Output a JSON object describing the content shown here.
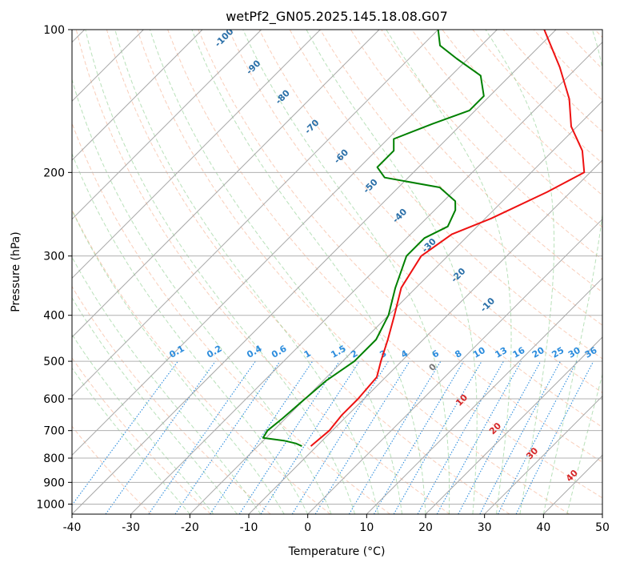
{
  "chart_data": {
    "type": "line",
    "subtype": "skew-t log-p diagram",
    "title": "wetPf2_GN05.2025.145.18.08.G07",
    "xlabel": "Temperature (°C)",
    "ylabel": "Pressure (hPa)",
    "xlim": [
      -40,
      50
    ],
    "ylim": [
      1050,
      100
    ],
    "y_scale": "log",
    "grid": true,
    "x_ticks": [
      -40,
      -30,
      -20,
      -10,
      0,
      10,
      20,
      30,
      40,
      50
    ],
    "y_ticks": [
      100,
      200,
      300,
      400,
      500,
      600,
      700,
      800,
      900,
      1000
    ],
    "dry_adiabat_labels": [
      -100,
      -90,
      -80,
      -70,
      -60,
      -50,
      -40,
      -30,
      -20,
      -10
    ],
    "moist_adiabat_labels": [
      0,
      10,
      20,
      30,
      40
    ],
    "mixing_ratio_labels": [
      "0.1",
      "0.2",
      "0.4",
      "0.6",
      "1",
      "1.5",
      "2",
      "3",
      "4",
      "6",
      "8",
      "10",
      "13",
      "16",
      "20",
      "25",
      "30",
      "36"
    ],
    "series": [
      {
        "role": "temperature",
        "color": "#ee1111",
        "points": [
          [
            755,
            -11.0
          ],
          [
            700,
            -10.5
          ],
          [
            650,
            -11.0
          ],
          [
            600,
            -11.0
          ],
          [
            540,
            -11.5
          ],
          [
            500,
            -13.5
          ],
          [
            450,
            -16.0
          ],
          [
            400,
            -19.0
          ],
          [
            350,
            -22.5
          ],
          [
            300,
            -24.5
          ],
          [
            270,
            -23.0
          ],
          [
            250,
            -19.0
          ],
          [
            220,
            -14.0
          ],
          [
            200,
            -11.0
          ],
          [
            180,
            -15.0
          ],
          [
            160,
            -21.0
          ],
          [
            140,
            -26.0
          ],
          [
            120,
            -33.0
          ],
          [
            100,
            -42.0
          ]
        ]
      },
      {
        "role": "dewpoint",
        "color": "#008000",
        "points": [
          [
            755,
            -12.5
          ],
          [
            745,
            -14.0
          ],
          [
            735,
            -16.5
          ],
          [
            725,
            -20.5
          ],
          [
            700,
            -21.0
          ],
          [
            660,
            -20.5
          ],
          [
            600,
            -20.0
          ],
          [
            550,
            -19.5
          ],
          [
            500,
            -18.0
          ],
          [
            450,
            -18.0
          ],
          [
            400,
            -20.0
          ],
          [
            350,
            -23.5
          ],
          [
            300,
            -27.0
          ],
          [
            275,
            -27.0
          ],
          [
            260,
            -25.0
          ],
          [
            240,
            -26.5
          ],
          [
            230,
            -28.0
          ],
          [
            215,
            -33.0
          ],
          [
            205,
            -44.0
          ],
          [
            195,
            -47.0
          ],
          [
            180,
            -47.0
          ],
          [
            170,
            -49.0
          ],
          [
            158,
            -45.0
          ],
          [
            148,
            -41.0
          ],
          [
            138,
            -41.0
          ],
          [
            125,
            -45.0
          ],
          [
            115,
            -52.0
          ],
          [
            108,
            -57.0
          ],
          [
            100,
            -60.0
          ]
        ]
      }
    ]
  }
}
